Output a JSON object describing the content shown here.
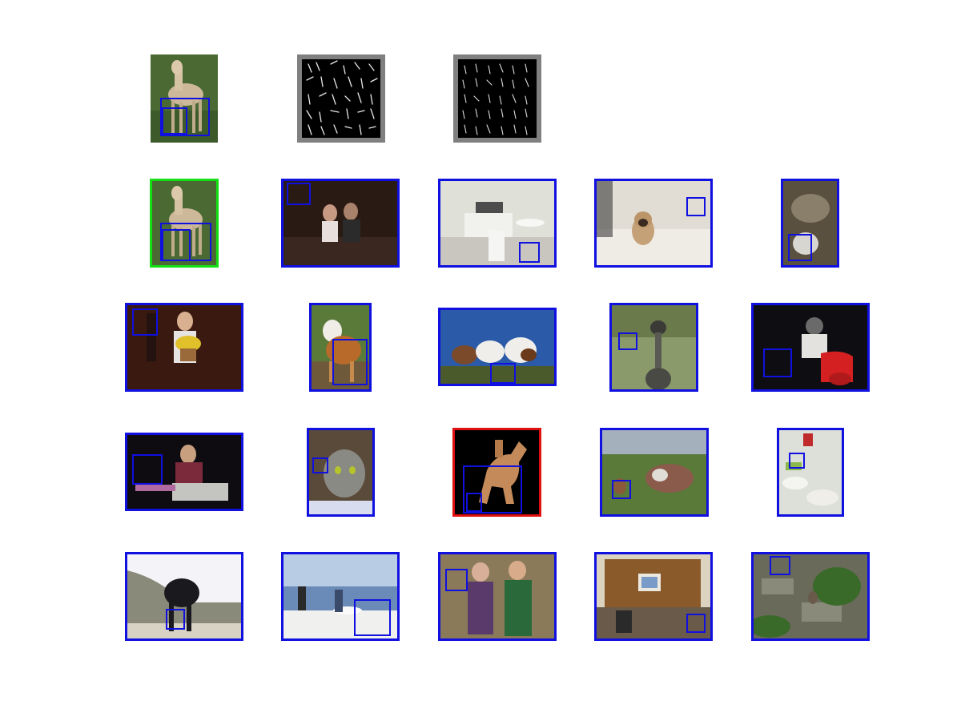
{
  "colors": {
    "box": "#1010e0",
    "border_blue": "#1010e0",
    "border_green": "#12e012",
    "border_red": "#e01010",
    "border_gray": "#808080"
  },
  "row1": [
    {
      "name": "query-horse",
      "content": "horse",
      "border": "none"
    },
    {
      "name": "hog-feature-grid-1",
      "content": "hog-visualization",
      "border": "gray"
    },
    {
      "name": "hog-feature-grid-2",
      "content": "hog-visualization",
      "border": "gray"
    }
  ],
  "detections": [
    {
      "name": "detection-horse",
      "content": "horse",
      "border": "green"
    },
    {
      "name": "detection-two-people-night",
      "content": "people",
      "border": "blue"
    },
    {
      "name": "detection-living-room",
      "content": "room",
      "border": "blue"
    },
    {
      "name": "detection-pug",
      "content": "dog",
      "border": "blue"
    },
    {
      "name": "detection-sheep",
      "content": "sheep",
      "border": "blue"
    },
    {
      "name": "detection-man-with-flowers",
      "content": "person",
      "border": "blue"
    },
    {
      "name": "detection-calf",
      "content": "calf",
      "border": "blue"
    },
    {
      "name": "detection-cows-sky",
      "content": "cows",
      "border": "blue"
    },
    {
      "name": "detection-emu",
      "content": "bird",
      "border": "blue"
    },
    {
      "name": "detection-scooter-rider",
      "content": "rider",
      "border": "blue"
    },
    {
      "name": "detection-dj-mixer",
      "content": "person",
      "border": "blue"
    },
    {
      "name": "detection-cat",
      "content": "cat",
      "border": "blue"
    },
    {
      "name": "detection-horse-statue",
      "content": "statue",
      "border": "red"
    },
    {
      "name": "detection-cow-field",
      "content": "cow",
      "border": "blue"
    },
    {
      "name": "detection-table-food",
      "content": "table",
      "border": "blue"
    },
    {
      "name": "detection-black-cow",
      "content": "cow",
      "border": "blue"
    },
    {
      "name": "detection-boat-deck",
      "content": "people",
      "border": "blue"
    },
    {
      "name": "detection-elderly-couple",
      "content": "people",
      "border": "blue"
    },
    {
      "name": "detection-computer-desk",
      "content": "desk",
      "border": "blue"
    },
    {
      "name": "detection-garden-cat",
      "content": "cat",
      "border": "blue"
    }
  ]
}
